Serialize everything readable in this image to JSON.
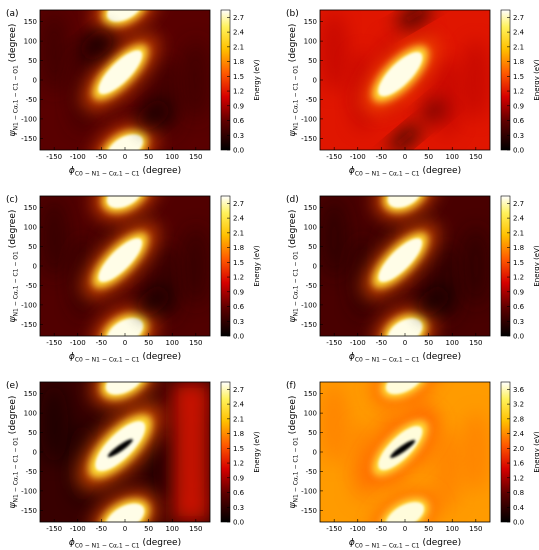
{
  "chart_data": [
    {
      "type": "heatmap",
      "panel_label": "(a)",
      "xlabel_parts": {
        "main": "ϕ",
        "sub": "C0 − N1 − Cα,1 − C1",
        "tail": "(degree)"
      },
      "ylabel_parts": {
        "main": "ψ",
        "sub": "N1 − Cα,1 − C1 − O1",
        "tail": "(degree)"
      },
      "xlim": [
        -180,
        180
      ],
      "ylim": [
        -180,
        180
      ],
      "xticks": [
        "-150",
        "-100",
        "-50",
        "0",
        "50",
        "100",
        "150"
      ],
      "yticks": [
        "150",
        "100",
        "50",
        "0",
        "-50",
        "-100",
        "-150"
      ],
      "colorbar": {
        "label": "Energy (eV)",
        "ticks": [
          "0.0",
          "0.3",
          "0.6",
          "0.9",
          "1.2",
          "1.5",
          "1.8",
          "2.1",
          "2.4",
          "2.7"
        ],
        "range": [
          0,
          2.85
        ]
      },
      "background_level": 0.55,
      "features": [
        {
          "kind": "maximum",
          "x": -10,
          "y": 20,
          "rx": 62,
          "ry": 26,
          "angle": -45,
          "value": 2.8
        },
        {
          "kind": "maximum",
          "x": 0,
          "y": -175,
          "rx": 42,
          "ry": 28,
          "angle": -30,
          "value": 2.8
        },
        {
          "kind": "maximum",
          "x": 0,
          "y": 185,
          "rx": 42,
          "ry": 28,
          "angle": -30,
          "value": 2.8
        },
        {
          "kind": "minimum",
          "x": 60,
          "y": -90,
          "rx": 40,
          "ry": 30,
          "angle": -40,
          "value": 0.1
        },
        {
          "kind": "minimum",
          "x": -60,
          "y": 90,
          "rx": 40,
          "ry": 30,
          "angle": -40,
          "value": 0.1
        }
      ]
    },
    {
      "type": "heatmap",
      "panel_label": "(b)",
      "xlabel_parts": {
        "main": "ϕ",
        "sub": "C0 − N1 − Cα,1 − C1",
        "tail": "(degree)"
      },
      "ylabel_parts": {
        "main": "ψ",
        "sub": "N1 − Cα,1 − C1 − O1",
        "tail": "(degree)"
      },
      "xlim": [
        -180,
        180
      ],
      "ylim": [
        -180,
        180
      ],
      "xticks": [
        "-150",
        "-100",
        "-50",
        "0",
        "50",
        "100",
        "150"
      ],
      "yticks": [
        "150",
        "100",
        "50",
        "0",
        "-50",
        "-100",
        "-150"
      ],
      "colorbar": {
        "label": "Energy (eV)",
        "ticks": [
          "0.0",
          "0.3",
          "0.6",
          "0.9",
          "1.2",
          "1.5",
          "1.8",
          "2.1",
          "2.4",
          "2.7"
        ],
        "range": [
          0,
          2.85
        ]
      },
      "background_level": 1.2,
      "features": [
        {
          "kind": "maximum",
          "x": -10,
          "y": 15,
          "rx": 62,
          "ry": 28,
          "angle": -45,
          "value": 2.8
        },
        {
          "kind": "minimum",
          "x": 0,
          "y": -150,
          "rx": 42,
          "ry": 18,
          "angle": -40,
          "value": 0.05
        },
        {
          "kind": "minimum",
          "x": 20,
          "y": 165,
          "rx": 42,
          "ry": 18,
          "angle": -30,
          "value": 0.05
        },
        {
          "kind": "minimum",
          "x": 60,
          "y": -80,
          "rx": 30,
          "ry": 25,
          "angle": -40,
          "value": 0.6
        }
      ]
    },
    {
      "type": "heatmap",
      "panel_label": "(c)",
      "xlabel_parts": {
        "main": "ϕ",
        "sub": "C0 − N1 − Cα,1 − C1",
        "tail": "(degree)"
      },
      "ylabel_parts": {
        "main": "ψ",
        "sub": "N1 − Cα,1 − C1 − O1",
        "tail": "(degree)"
      },
      "xlim": [
        -180,
        180
      ],
      "ylim": [
        -180,
        180
      ],
      "xticks": [
        "-150",
        "-100",
        "-50",
        "0",
        "50",
        "100",
        "150"
      ],
      "yticks": [
        "150",
        "100",
        "50",
        "0",
        "-50",
        "-100",
        "-150"
      ],
      "colorbar": {
        "label": "Energy (eV)",
        "ticks": [
          "0.0",
          "0.3",
          "0.6",
          "0.9",
          "1.2",
          "1.5",
          "1.8",
          "2.1",
          "2.4",
          "2.7"
        ],
        "range": [
          0,
          2.85
        ]
      },
      "background_level": 0.5,
      "features": [
        {
          "kind": "maximum",
          "x": -10,
          "y": 15,
          "rx": 62,
          "ry": 26,
          "angle": -45,
          "value": 2.8
        },
        {
          "kind": "maximum",
          "x": 0,
          "y": -170,
          "rx": 42,
          "ry": 30,
          "angle": -30,
          "value": 2.8
        },
        {
          "kind": "maximum",
          "x": 0,
          "y": 185,
          "rx": 42,
          "ry": 30,
          "angle": -30,
          "value": 2.8
        },
        {
          "kind": "minimum",
          "x": 60,
          "y": -90,
          "rx": 40,
          "ry": 30,
          "angle": -40,
          "value": 0.1
        }
      ]
    },
    {
      "type": "heatmap",
      "panel_label": "(d)",
      "xlabel_parts": {
        "main": "ϕ",
        "sub": "C0 − N1 − Cα,1 − C1",
        "tail": "(degree)"
      },
      "ylabel_parts": {
        "main": "ψ",
        "sub": "N1 − Cα,1 − C1 − O1",
        "tail": "(degree)"
      },
      "xlim": [
        -180,
        180
      ],
      "ylim": [
        -180,
        180
      ],
      "xticks": [
        "-150",
        "-100",
        "-50",
        "0",
        "50",
        "100",
        "150"
      ],
      "yticks": [
        "150",
        "100",
        "50",
        "0",
        "-50",
        "-100",
        "-150"
      ],
      "colorbar": {
        "label": "Energy (eV)",
        "ticks": [
          "0.0",
          "0.3",
          "0.6",
          "0.9",
          "1.2",
          "1.5",
          "1.8",
          "2.1",
          "2.4",
          "2.7"
        ],
        "range": [
          0,
          2.85
        ]
      },
      "background_level": 0.45,
      "features": [
        {
          "kind": "maximum",
          "x": -10,
          "y": 15,
          "rx": 62,
          "ry": 26,
          "angle": -45,
          "value": 2.8
        },
        {
          "kind": "maximum",
          "x": 0,
          "y": -170,
          "rx": 40,
          "ry": 30,
          "angle": -30,
          "value": 2.8
        },
        {
          "kind": "maximum",
          "x": 0,
          "y": 185,
          "rx": 40,
          "ry": 30,
          "angle": -30,
          "value": 2.8
        },
        {
          "kind": "minimum",
          "x": 60,
          "y": -90,
          "rx": 40,
          "ry": 30,
          "angle": -40,
          "value": 0.05
        }
      ]
    },
    {
      "type": "heatmap",
      "panel_label": "(e)",
      "xlabel_parts": {
        "main": "ϕ",
        "sub": "C0 − N1 − Cα,1 − C1",
        "tail": "(degree)"
      },
      "ylabel_parts": {
        "main": "ψ",
        "sub": "N1 − Cα,1 − C1 − O1",
        "tail": "(degree)"
      },
      "xlim": [
        -180,
        180
      ],
      "ylim": [
        -180,
        180
      ],
      "xticks": [
        "-150",
        "-100",
        "-50",
        "0",
        "50",
        "100",
        "150"
      ],
      "yticks": [
        "150",
        "100",
        "50",
        "0",
        "-50",
        "-100",
        "-150"
      ],
      "colorbar": {
        "label": "Energy (eV)",
        "ticks": [
          "0.0",
          "0.3",
          "0.6",
          "0.9",
          "1.2",
          "1.5",
          "1.8",
          "2.1",
          "2.4",
          "2.7"
        ],
        "range": [
          0,
          2.85
        ]
      },
      "background_level": 0.35,
      "features": [
        {
          "kind": "maximum",
          "x": -10,
          "y": 15,
          "rx": 70,
          "ry": 32,
          "angle": -45,
          "value": 2.8
        },
        {
          "kind": "core",
          "x": -10,
          "y": 10,
          "rx": 32,
          "ry": 8,
          "angle": -35,
          "value": 0.0
        },
        {
          "kind": "maximum",
          "x": 0,
          "y": -170,
          "rx": 45,
          "ry": 30,
          "angle": -30,
          "value": 2.8
        },
        {
          "kind": "maximum",
          "x": 0,
          "y": 185,
          "rx": 45,
          "ry": 30,
          "angle": -30,
          "value": 2.8
        },
        {
          "kind": "band",
          "x": 140,
          "y": 0,
          "rx": 40,
          "ry": 200,
          "angle": 0,
          "value": 1.2
        }
      ]
    },
    {
      "type": "heatmap",
      "panel_label": "(f)",
      "xlabel_parts": {
        "main": "ϕ",
        "sub": "C0 − N1 − Cα,1 − C1",
        "tail": "(degree)"
      },
      "ylabel_parts": {
        "main": "ψ",
        "sub": "N1 − Cα,1 − C1 − O1",
        "tail": "(degree)"
      },
      "xlim": [
        -180,
        180
      ],
      "ylim": [
        -180,
        180
      ],
      "xticks": [
        "-150",
        "-100",
        "-50",
        "0",
        "50",
        "100",
        "150"
      ],
      "yticks": [
        "150",
        "100",
        "50",
        "0",
        "-50",
        "-100",
        "-150"
      ],
      "colorbar": {
        "label": "Energy (eV)",
        "ticks": [
          "0.0",
          "0.4",
          "0.8",
          "1.2",
          "1.6",
          "2.0",
          "2.4",
          "2.8",
          "3.2",
          "3.6"
        ],
        "range": [
          0,
          3.8
        ]
      },
      "background_level": 2.5,
      "features": [
        {
          "kind": "maximum",
          "x": -10,
          "y": 10,
          "rx": 62,
          "ry": 28,
          "angle": -45,
          "value": 3.7
        },
        {
          "kind": "core",
          "x": -5,
          "y": 8,
          "rx": 32,
          "ry": 8,
          "angle": -35,
          "value": 0.0
        },
        {
          "kind": "maximum",
          "x": 0,
          "y": -165,
          "rx": 45,
          "ry": 28,
          "angle": -30,
          "value": 3.7
        },
        {
          "kind": "maximum",
          "x": 0,
          "y": 185,
          "rx": 45,
          "ry": 28,
          "angle": -30,
          "value": 3.7
        }
      ]
    }
  ]
}
